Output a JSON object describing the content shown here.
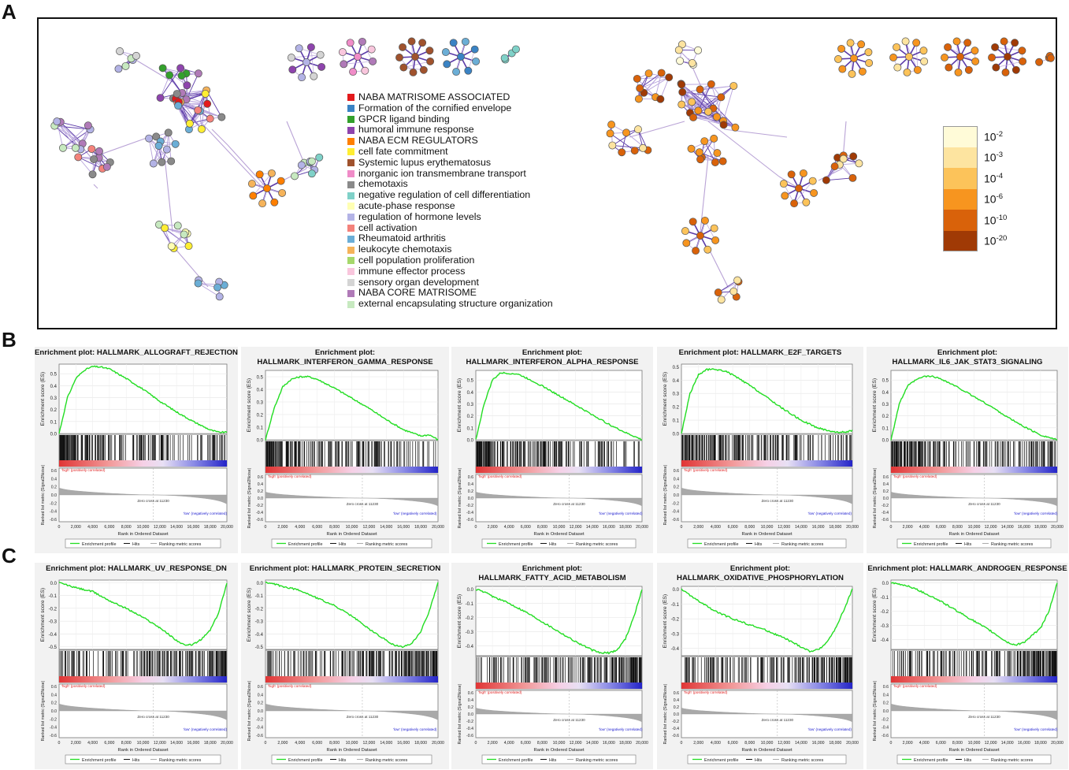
{
  "panel_letters": {
    "a": "A",
    "b": "B",
    "c": "C"
  },
  "network_legend": [
    {
      "label": "NABA MATRISOME ASSOCIATED",
      "color": "#e31a1c"
    },
    {
      "label": "Formation of the cornified envelope",
      "color": "#3a83c4"
    },
    {
      "label": "GPCR ligand binding",
      "color": "#33a02c"
    },
    {
      "label": "humoral immune response",
      "color": "#8e44ad"
    },
    {
      "label": "NABA ECM REGULATORS",
      "color": "#ff7f00"
    },
    {
      "label": "cell fate commitment",
      "color": "#ffee33"
    },
    {
      "label": "Systemic lupus erythematosus",
      "color": "#a0522d"
    },
    {
      "label": "inorganic ion transmembrane transport",
      "color": "#f08cc8"
    },
    {
      "label": "chemotaxis",
      "color": "#8a8a8a"
    },
    {
      "label": "negative regulation of cell differentiation",
      "color": "#7fd1c8"
    },
    {
      "label": "acute-phase response",
      "color": "#ffffb3"
    },
    {
      "label": "regulation of hormone levels",
      "color": "#b3b3e6"
    },
    {
      "label": "cell activation",
      "color": "#f4827b"
    },
    {
      "label": "Rheumatoid arthritis",
      "color": "#6baed6"
    },
    {
      "label": "leukocyte chemotaxis",
      "color": "#f5b35a"
    },
    {
      "label": "cell population proliferation",
      "color": "#a6d86b"
    },
    {
      "label": "immune effector process",
      "color": "#f9c6dd"
    },
    {
      "label": "sensory organ development",
      "color": "#d4d4d4"
    },
    {
      "label": "NABA CORE MATRISOME",
      "color": "#b07ab8"
    },
    {
      "label": "external encapsulating structure organization",
      "color": "#c7e9c0"
    }
  ],
  "pvalue_scale": [
    {
      "base": "10",
      "exp": "-2",
      "color": "#fffbd8"
    },
    {
      "base": "10",
      "exp": "-3",
      "color": "#fde4a0"
    },
    {
      "base": "10",
      "exp": "-4",
      "color": "#fcc35a"
    },
    {
      "base": "10",
      "exp": "-6",
      "color": "#f7951f"
    },
    {
      "base": "10",
      "exp": "-10",
      "color": "#d9620a"
    },
    {
      "base": "10",
      "exp": "-20",
      "color": "#a03a05"
    }
  ],
  "gsea_common": {
    "es_ylabel": "Enrichment score (ES)",
    "rank_ylabel": "Ranked list metric (Signal2Noise)",
    "xlabel": "Rank in Ordered Dataset",
    "high_label": "'high' (positively correlated)",
    "low_label": "'low' (negatively correlated)",
    "zero_cross": "Zero cross at 11230",
    "legend_profile": "Enrichment profile",
    "legend_hits": "Hits",
    "legend_ranking": "Ranking metric scores",
    "x_ticks": [
      "0",
      "2,000",
      "4,000",
      "6,000",
      "8,000",
      "10,000",
      "12,000",
      "14,000",
      "16,000",
      "18,000",
      "20,000"
    ],
    "rank_ticks": [
      "0.6",
      "0.4",
      "0.2",
      "0.0",
      "-0.2",
      "-0.4",
      "-0.6"
    ],
    "profile_color": "#22dd22"
  },
  "chart_data": [
    {
      "type": "line",
      "panel": "B",
      "title_lines": [
        "Enrichment plot: HALLMARK_ALLOGRAFT_REJECTION"
      ],
      "es_ticks": [
        "0.5",
        "0.4",
        "0.3",
        "0.2",
        "0.1",
        "0.0"
      ],
      "es_range": [
        0.0,
        0.58
      ],
      "x": [
        0,
        1000,
        2000,
        3000,
        4000,
        5000,
        6000,
        8000,
        10000,
        12000,
        14000,
        16000,
        18000,
        19000,
        20000
      ],
      "es": [
        0.0,
        0.3,
        0.46,
        0.53,
        0.56,
        0.555,
        0.54,
        0.46,
        0.37,
        0.27,
        0.18,
        0.1,
        0.03,
        0.01,
        0.01
      ]
    },
    {
      "type": "line",
      "panel": "B",
      "title_lines": [
        "Enrichment plot:",
        "HALLMARK_INTERFERON_GAMMA_RESPONSE"
      ],
      "es_ticks": [
        "0.5",
        "0.4",
        "0.3",
        "0.2",
        "0.1",
        "0.0"
      ],
      "es_range": [
        0.0,
        0.55
      ],
      "x": [
        0,
        1000,
        2000,
        3000,
        4000,
        5000,
        6000,
        8000,
        10000,
        12000,
        14000,
        16000,
        18000,
        19000,
        20000
      ],
      "es": [
        0.0,
        0.25,
        0.42,
        0.48,
        0.5,
        0.5,
        0.48,
        0.41,
        0.33,
        0.25,
        0.16,
        0.08,
        0.03,
        0.04,
        0.0
      ]
    },
    {
      "type": "line",
      "panel": "B",
      "title_lines": [
        "Enrichment plot:",
        "HALLMARK_INTERFERON_ALPHA_RESPONSE"
      ],
      "es_ticks": [
        "0.5",
        "0.4",
        "0.3",
        "0.2",
        "0.1",
        "0.0"
      ],
      "es_range": [
        0.0,
        0.58
      ],
      "x": [
        0,
        1000,
        2000,
        3000,
        4000,
        5000,
        6000,
        8000,
        10000,
        12000,
        14000,
        16000,
        18000,
        19000,
        20000
      ],
      "es": [
        0.0,
        0.3,
        0.5,
        0.56,
        0.555,
        0.55,
        0.52,
        0.45,
        0.37,
        0.29,
        0.21,
        0.13,
        0.06,
        0.03,
        0.0
      ]
    },
    {
      "type": "line",
      "panel": "B",
      "title_lines": [
        "Enrichment plot: HALLMARK_E2F_TARGETS"
      ],
      "es_ticks": [
        "0.5",
        "0.4",
        "0.3",
        "0.2",
        "0.1",
        "0.0"
      ],
      "es_range": [
        0.0,
        0.52
      ],
      "x": [
        0,
        1000,
        2000,
        3000,
        4000,
        5000,
        6000,
        8000,
        10000,
        12000,
        14000,
        16000,
        18000,
        19000,
        20000
      ],
      "es": [
        0.0,
        0.3,
        0.44,
        0.48,
        0.48,
        0.47,
        0.44,
        0.36,
        0.27,
        0.18,
        0.1,
        0.04,
        0.01,
        0.01,
        0.02
      ]
    },
    {
      "type": "line",
      "panel": "B",
      "title_lines": [
        "Enrichment plot:",
        "HALLMARK_IL6_JAK_STAT3_SIGNALING"
      ],
      "es_ticks": [
        "0.5",
        "0.4",
        "0.3",
        "0.2",
        "0.1",
        "0.0"
      ],
      "es_range": [
        0.0,
        0.58
      ],
      "x": [
        0,
        1000,
        2000,
        3000,
        4000,
        5000,
        6000,
        8000,
        10000,
        12000,
        14000,
        16000,
        18000,
        19000,
        20000
      ],
      "es": [
        0.0,
        0.3,
        0.45,
        0.5,
        0.53,
        0.53,
        0.51,
        0.44,
        0.36,
        0.28,
        0.19,
        0.11,
        0.04,
        0.02,
        0.0
      ]
    },
    {
      "type": "line",
      "panel": "C",
      "title_lines": [
        "Enrichment plot: HALLMARK_UV_RESPONSE_DN"
      ],
      "es_ticks": [
        "0.0",
        "-0.1",
        "-0.2",
        "-0.3",
        "-0.4",
        "-0.5"
      ],
      "es_range": [
        -0.52,
        0.02
      ],
      "x": [
        0,
        1000,
        2000,
        4000,
        6000,
        8000,
        10000,
        12000,
        13000,
        14000,
        15000,
        16000,
        17000,
        18000,
        19000,
        20000
      ],
      "es": [
        0.0,
        -0.02,
        -0.04,
        -0.07,
        -0.14,
        -0.2,
        -0.27,
        -0.35,
        -0.4,
        -0.45,
        -0.49,
        -0.48,
        -0.44,
        -0.37,
        -0.24,
        0.0
      ]
    },
    {
      "type": "line",
      "panel": "C",
      "title_lines": [
        "Enrichment plot: HALLMARK_PROTEIN_SECRETION"
      ],
      "es_ticks": [
        "0.0",
        "-0.1",
        "-0.2",
        "-0.3",
        "-0.4",
        "-0.5"
      ],
      "es_range": [
        -0.52,
        0.02
      ],
      "x": [
        0,
        1000,
        2000,
        4000,
        6000,
        8000,
        10000,
        12000,
        14000,
        15000,
        16000,
        17000,
        18000,
        19000,
        20000
      ],
      "es": [
        0.0,
        -0.01,
        -0.03,
        -0.06,
        -0.12,
        -0.18,
        -0.26,
        -0.36,
        -0.45,
        -0.49,
        -0.5,
        -0.47,
        -0.38,
        -0.22,
        0.0
      ]
    },
    {
      "type": "line",
      "panel": "C",
      "title_lines": [
        "Enrichment plot:",
        "HALLMARK_FATTY_ACID_METABOLISM"
      ],
      "es_ticks": [
        "0.0",
        "-0.1",
        "-0.2",
        "-0.3",
        "-0.4"
      ],
      "es_range": [
        -0.47,
        0.02
      ],
      "x": [
        0,
        1000,
        2000,
        4000,
        6000,
        8000,
        10000,
        12000,
        14000,
        15000,
        16000,
        17000,
        18000,
        19000,
        20000
      ],
      "es": [
        0.0,
        -0.02,
        -0.05,
        -0.1,
        -0.16,
        -0.23,
        -0.3,
        -0.37,
        -0.43,
        -0.45,
        -0.45,
        -0.43,
        -0.35,
        -0.2,
        0.0
      ]
    },
    {
      "type": "line",
      "panel": "C",
      "title_lines": [
        "Enrichment plot:",
        "HALLMARK_OXIDATIVE_PHOSPHORYLATION"
      ],
      "es_ticks": [
        "0.0",
        "-0.1",
        "-0.2",
        "-0.3",
        "-0.4"
      ],
      "es_range": [
        -0.45,
        0.02
      ],
      "x": [
        0,
        1000,
        2000,
        4000,
        6000,
        8000,
        10000,
        12000,
        14000,
        15000,
        16000,
        17000,
        18000,
        19000,
        20000
      ],
      "es": [
        0.0,
        -0.04,
        -0.08,
        -0.15,
        -0.2,
        -0.24,
        -0.28,
        -0.33,
        -0.39,
        -0.42,
        -0.41,
        -0.36,
        -0.27,
        -0.14,
        0.0
      ]
    },
    {
      "type": "line",
      "panel": "C",
      "title_lines": [
        "Enrichment plot: HALLMARK_ANDROGEN_RESPONSE"
      ],
      "es_ticks": [
        "0.0",
        "-0.1",
        "-0.2",
        "-0.3",
        "-0.4"
      ],
      "es_range": [
        -0.47,
        0.02
      ],
      "x": [
        0,
        1000,
        2000,
        4000,
        6000,
        8000,
        10000,
        12000,
        13000,
        14000,
        15000,
        16000,
        17000,
        18000,
        19000,
        20000
      ],
      "es": [
        0.0,
        -0.01,
        -0.02,
        -0.07,
        -0.13,
        -0.2,
        -0.27,
        -0.34,
        -0.38,
        -0.42,
        -0.44,
        -0.42,
        -0.37,
        -0.32,
        -0.2,
        0.0
      ]
    }
  ]
}
